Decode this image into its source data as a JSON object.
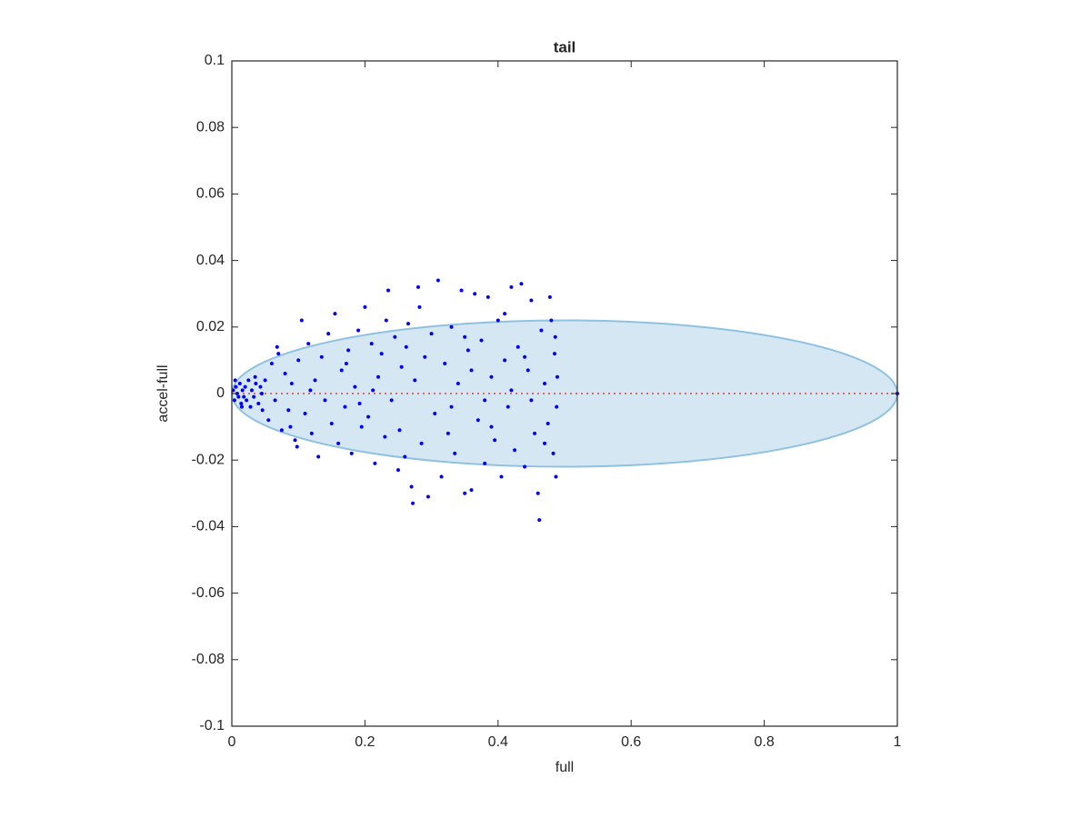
{
  "chart_data": {
    "type": "scatter",
    "title": "tail",
    "xlabel": "full",
    "ylabel": "accel-full",
    "xlim": [
      0,
      1
    ],
    "ylim": [
      -0.1,
      0.1
    ],
    "xticks": [
      0,
      0.2,
      0.4,
      0.6,
      0.8,
      1
    ],
    "yticks": [
      -0.1,
      -0.08,
      -0.06,
      -0.04,
      -0.02,
      0,
      0.02,
      0.04,
      0.06,
      0.08,
      0.1
    ],
    "ellipse": {
      "center": [
        0.5,
        0
      ],
      "radii": [
        0.5,
        0.022
      ],
      "fill": "#d6e7f4",
      "edge": "#8fc1e0"
    },
    "reference_line": {
      "x": [
        0,
        1
      ],
      "y": [
        0,
        0
      ],
      "color": "#e8413a"
    },
    "series": [
      {
        "color": "#0000ff",
        "x": [
          0.002,
          0.004,
          0.006,
          0.008,
          0.01,
          0.012,
          0.014,
          0.016,
          0.018,
          0.02,
          0.022,
          0.025,
          0.028,
          0.03,
          0.033,
          0.036,
          0.04,
          0.043,
          0.046,
          0.05,
          0.005,
          0.015,
          0.035,
          0.045,
          0.055,
          0.06,
          0.065,
          0.07,
          0.075,
          0.08,
          0.085,
          0.09,
          0.095,
          0.1,
          0.105,
          0.11,
          0.115,
          0.12,
          0.125,
          0.13,
          0.135,
          0.14,
          0.145,
          0.15,
          0.098,
          0.068,
          0.088,
          0.118,
          0.155,
          0.16,
          0.165,
          0.17,
          0.175,
          0.18,
          0.185,
          0.19,
          0.195,
          0.2,
          0.205,
          0.21,
          0.215,
          0.22,
          0.225,
          0.23,
          0.235,
          0.24,
          0.245,
          0.25,
          0.255,
          0.26,
          0.265,
          0.27,
          0.275,
          0.28,
          0.285,
          0.29,
          0.295,
          0.3,
          0.172,
          0.192,
          0.212,
          0.232,
          0.252,
          0.272,
          0.282,
          0.262,
          0.305,
          0.31,
          0.315,
          0.32,
          0.325,
          0.33,
          0.335,
          0.34,
          0.345,
          0.35,
          0.355,
          0.36,
          0.365,
          0.37,
          0.375,
          0.38,
          0.385,
          0.39,
          0.395,
          0.4,
          0.405,
          0.41,
          0.415,
          0.42,
          0.425,
          0.43,
          0.435,
          0.44,
          0.445,
          0.45,
          0.455,
          0.46,
          0.462,
          0.465,
          0.47,
          0.475,
          0.478,
          0.48,
          0.483,
          0.485,
          0.487,
          0.489,
          0.488,
          0.486,
          0.33,
          0.36,
          0.39,
          0.42,
          0.45,
          0.47,
          0.44,
          0.41,
          0.38,
          0.35,
          1
        ],
        "y": [
          0.001,
          -0.002,
          0.002,
          0,
          -0.001,
          0.003,
          -0.003,
          0.001,
          -0.001,
          0.002,
          -0.002,
          0.004,
          -0.004,
          0.001,
          -0.001,
          0.003,
          -0.003,
          0.002,
          -0.005,
          0.004,
          0.004,
          -0.004,
          0.005,
          0,
          -0.008,
          0.009,
          -0.002,
          0.012,
          -0.011,
          0.006,
          -0.005,
          0.003,
          -0.014,
          0.01,
          0.022,
          -0.006,
          0.015,
          -0.012,
          0.004,
          -0.019,
          0.011,
          -0.002,
          0.018,
          -0.009,
          -0.016,
          0.014,
          -0.01,
          0.001,
          0.024,
          -0.015,
          0.007,
          -0.004,
          0.013,
          -0.018,
          0.002,
          0.019,
          -0.01,
          0.026,
          -0.007,
          0.015,
          -0.021,
          0.005,
          0.012,
          -0.013,
          0.031,
          -0.002,
          0.017,
          -0.023,
          0.008,
          -0.019,
          0.021,
          -0.028,
          0.004,
          0.032,
          -0.015,
          0.011,
          -0.031,
          0.018,
          0.009,
          -0.003,
          0.001,
          0.022,
          -0.011,
          -0.033,
          0.026,
          0.014,
          -0.006,
          0.034,
          -0.025,
          0.009,
          -0.012,
          0.02,
          -0.018,
          0.003,
          0.031,
          -0.03,
          0.013,
          -0.029,
          0.03,
          -0.008,
          0.016,
          -0.021,
          0.029,
          0.005,
          -0.014,
          0.022,
          -0.025,
          0.01,
          -0.004,
          0.032,
          -0.017,
          0.014,
          0.033,
          -0.022,
          0.007,
          0.028,
          -0.012,
          -0.03,
          -0.038,
          0.019,
          0.003,
          -0.009,
          0.029,
          0.022,
          -0.018,
          0.012,
          -0.025,
          0.005,
          -0.004,
          0.017,
          -0.004,
          0.007,
          -0.01,
          0.001,
          -0.002,
          -0.015,
          0.011,
          0.024,
          -0.002,
          0.017,
          0
        ]
      }
    ]
  }
}
